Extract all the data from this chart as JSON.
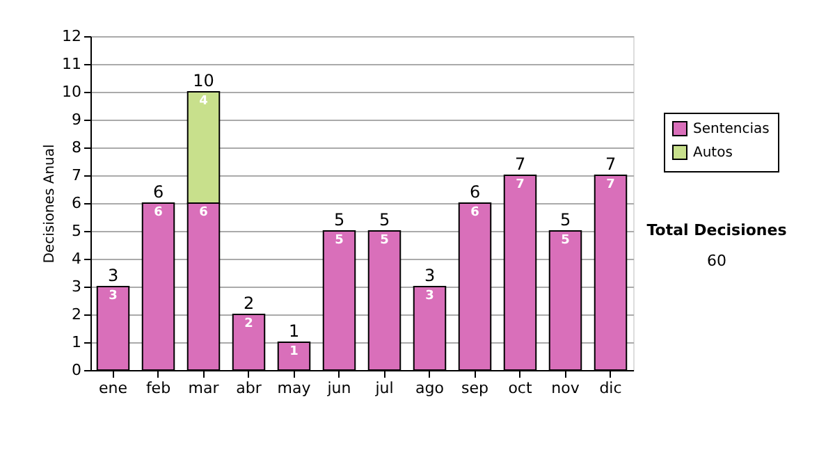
{
  "chart_data": {
    "type": "bar",
    "stacked": true,
    "ylabel": "Decisiones Anual",
    "categories": [
      "ene",
      "feb",
      "mar",
      "abr",
      "may",
      "jun",
      "jul",
      "ago",
      "sep",
      "oct",
      "nov",
      "dic"
    ],
    "series": [
      {
        "name": "Sentencias",
        "color": "#d96fba",
        "values": [
          3,
          6,
          6,
          2,
          1,
          5,
          5,
          3,
          6,
          7,
          5,
          7
        ]
      },
      {
        "name": "Autos",
        "color": "#c8e08c",
        "values": [
          null,
          null,
          4,
          null,
          null,
          null,
          null,
          null,
          null,
          null,
          null,
          null
        ]
      }
    ],
    "totals": [
      "3",
      "6",
      "10",
      "2",
      "1",
      "5",
      "5",
      "3",
      "6",
      "7",
      "5",
      "7"
    ],
    "data_labels": true,
    "ylim": [
      0,
      12
    ],
    "yticks": [
      0,
      1,
      2,
      3,
      4,
      5,
      6,
      7,
      8,
      9,
      10,
      11,
      12
    ],
    "grid": "y",
    "legend": "right",
    "annotations": [
      "Total Decisiones",
      "60"
    ]
  }
}
